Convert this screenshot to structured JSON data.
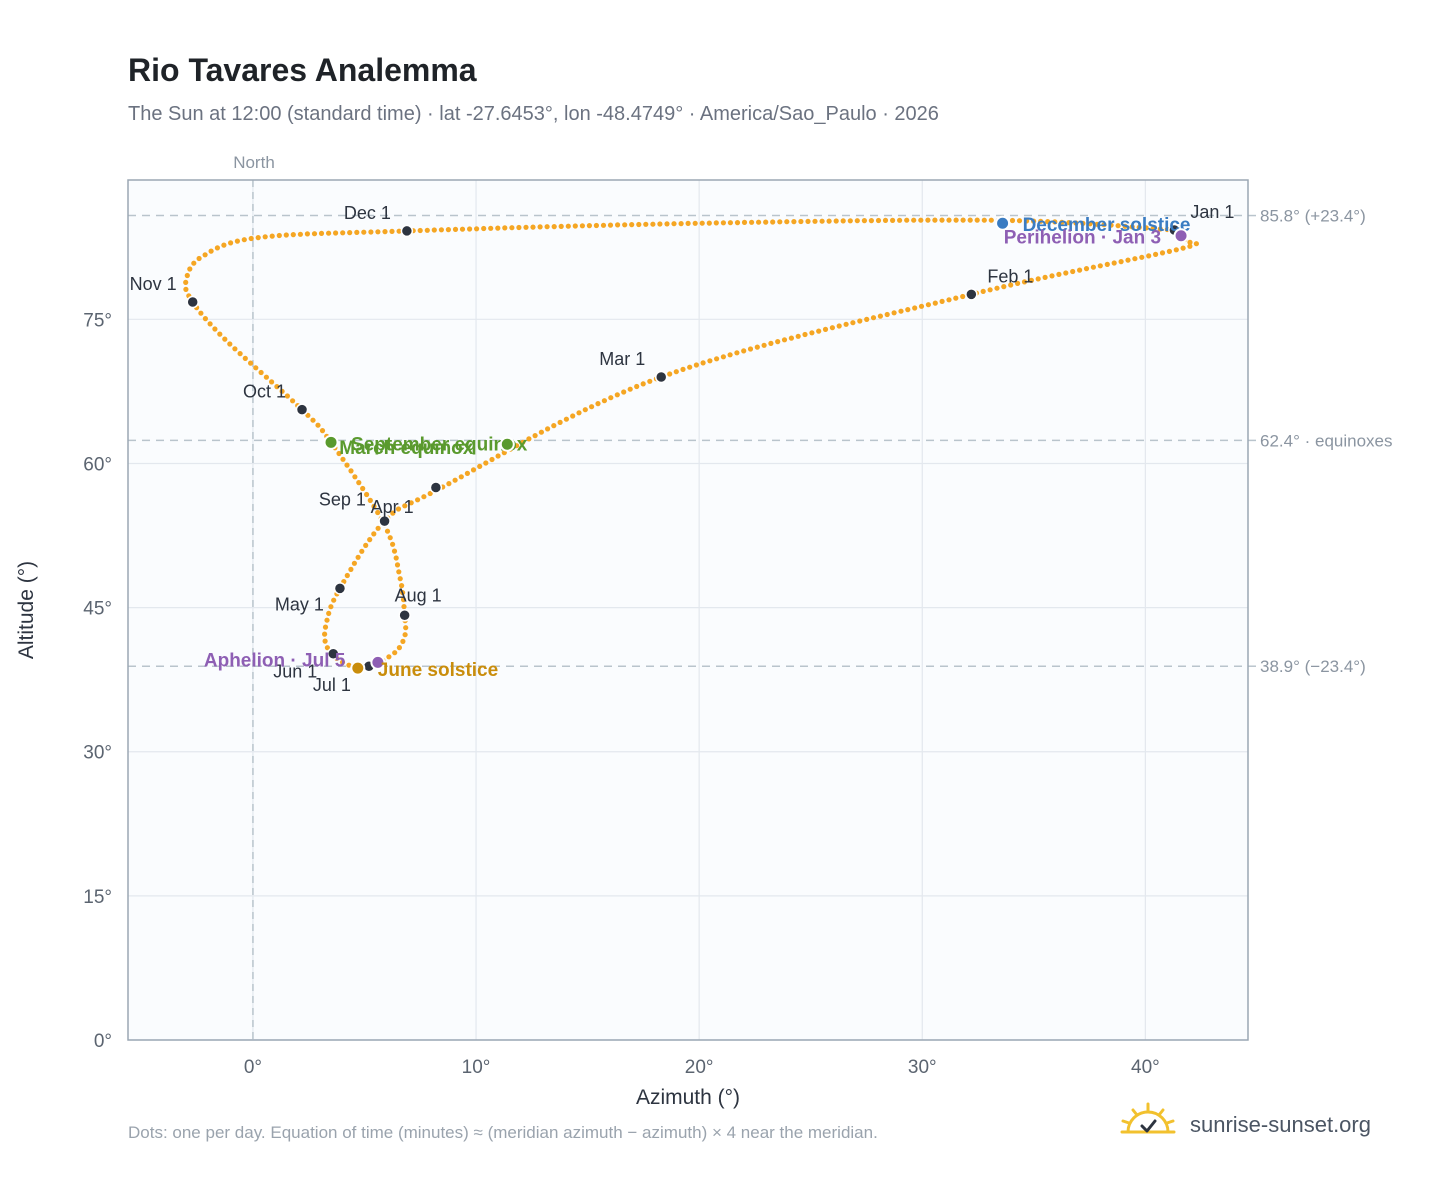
{
  "title": "Rio Tavares Analemma",
  "subtitle": "The Sun at 12:00 (standard time) · lat -27.6453°, lon -48.4749° · America/Sao_Paulo · 2026",
  "footer_note": "Dots: one per day. Equation of time (minutes) ≈ (meridian azimuth − azimuth) × 4 near the meridian.",
  "brand": {
    "name": "sunrise-sunset.org",
    "icon": "sun-logo-icon",
    "color": "#f2c12e"
  },
  "colors": {
    "path": "#f5a623",
    "month_marker": "#2d3440",
    "equinox": "#5a9a2e",
    "solstice_dec": "#3a7cc2",
    "solstice_jun": "#c98d0c",
    "apsis": "#8e5fb4",
    "reference_line": "#b9c4cc",
    "grid": "#e3e8ee",
    "plot_bg": "#fafcfe"
  },
  "chart_data": {
    "type": "scatter",
    "title": "Rio Tavares Analemma",
    "xlabel": "Azimuth (°)",
    "ylabel": "Altitude (°)",
    "xlim": [
      -5.6,
      44.6
    ],
    "ylim": [
      0,
      89.5
    ],
    "x_ticks": [
      0,
      10,
      20,
      30,
      40
    ],
    "x_tick_labels": [
      "0°",
      "10°",
      "20°",
      "30°",
      "40°"
    ],
    "y_ticks": [
      0,
      15,
      30,
      45,
      60,
      75
    ],
    "y_tick_labels": [
      "0°",
      "15°",
      "30°",
      "45°",
      "60°",
      "75°"
    ],
    "grid": true,
    "north_line": {
      "x": 0,
      "label": "North"
    },
    "reference_lines": [
      {
        "y": 85.8,
        "label": "85.8° (+23.4°)"
      },
      {
        "y": 62.4,
        "label": "62.4° · equinoxes"
      },
      {
        "y": 38.9,
        "label": "38.9° (−23.4°)"
      }
    ],
    "path_keypoints": [
      {
        "x": 41.3,
        "y": 84.3
      },
      {
        "x": 41.6,
        "y": 83.7
      },
      {
        "x": 41.8,
        "y": 83.1
      },
      {
        "x": 41.5,
        "y": 82.3
      },
      {
        "x": 32.2,
        "y": 77.6
      },
      {
        "x": 18.3,
        "y": 69.0
      },
      {
        "x": 8.3,
        "y": 57.3
      },
      {
        "x": 5.9,
        "y": 54.0
      },
      {
        "x": 3.9,
        "y": 47.0
      },
      {
        "x": 3.3,
        "y": 43.5
      },
      {
        "x": 3.3,
        "y": 41.0
      },
      {
        "x": 4.1,
        "y": 39.2
      },
      {
        "x": 5.1,
        "y": 38.9
      },
      {
        "x": 6.3,
        "y": 40.2
      },
      {
        "x": 6.8,
        "y": 42.0
      },
      {
        "x": 6.8,
        "y": 44.2
      },
      {
        "x": 6.6,
        "y": 48.0
      },
      {
        "x": 5.9,
        "y": 53.6
      },
      {
        "x": 3.5,
        "y": 62.2
      },
      {
        "x": 2.2,
        "y": 65.6
      },
      {
        "x": -1.2,
        "y": 72.8
      },
      {
        "x": -2.7,
        "y": 76.8
      },
      {
        "x": -3.0,
        "y": 79.0
      },
      {
        "x": -2.3,
        "y": 81.5
      },
      {
        "x": 0.2,
        "y": 83.5
      },
      {
        "x": 6.9,
        "y": 84.2
      },
      {
        "x": 20.0,
        "y": 85.0
      },
      {
        "x": 33.6,
        "y": 85.3
      },
      {
        "x": 41.3,
        "y": 84.3
      }
    ],
    "month_points": [
      {
        "label": "Jan 1",
        "x": 41.3,
        "y": 84.3
      },
      {
        "label": "Feb 1",
        "x": 32.2,
        "y": 77.6
      },
      {
        "label": "Mar 1",
        "x": 18.3,
        "y": 69.0
      },
      {
        "label": "Apr 1",
        "x": 5.9,
        "y": 54.0
      },
      {
        "label": "May 1",
        "x": 3.9,
        "y": 47.0
      },
      {
        "label": "Jun 1",
        "x": 3.6,
        "y": 40.2
      },
      {
        "label": "Jul 1",
        "x": 5.2,
        "y": 38.9
      },
      {
        "label": "Aug 1",
        "x": 6.8,
        "y": 44.2
      },
      {
        "label": "Sep 1",
        "x": 8.2,
        "y": 57.5
      },
      {
        "label": "Oct 1",
        "x": 2.2,
        "y": 65.6
      },
      {
        "label": "Nov 1",
        "x": -2.7,
        "y": 76.8
      },
      {
        "label": "Dec 1",
        "x": 6.9,
        "y": 84.2
      }
    ],
    "events": [
      {
        "label": "December solstice",
        "x": 33.6,
        "y": 85.0,
        "kind": "solstice_dec"
      },
      {
        "label": "Perihelion · Jan 3",
        "x": 41.6,
        "y": 83.7,
        "kind": "apsis"
      },
      {
        "label": "September equinox",
        "x": 3.5,
        "y": 62.2,
        "kind": "equinox"
      },
      {
        "label": "March equinox",
        "x": 11.4,
        "y": 62.0,
        "kind": "equinox"
      },
      {
        "label": "Aphelion · Jul 5",
        "x": 5.6,
        "y": 39.3,
        "kind": "apsis"
      },
      {
        "label": "June solstice",
        "x": 4.7,
        "y": 38.7,
        "kind": "solstice_jun"
      }
    ]
  }
}
